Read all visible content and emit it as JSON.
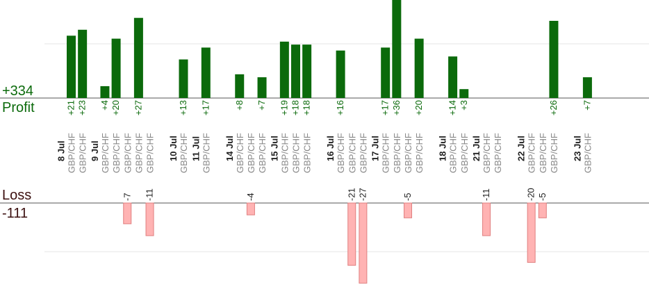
{
  "chart_data": {
    "type": "bar",
    "summary": {
      "profit_total": "+334",
      "profit_label": "Profit",
      "loss_label": "Loss",
      "loss_total": "-111"
    },
    "colors": {
      "profit": "#0b6a0b",
      "loss_fill": "#ffb3b3",
      "loss_stroke": "#e07f7f",
      "pair_text": "#888888",
      "date_text": "#222222",
      "grid": "#e6e6e6",
      "baseline": "#555555"
    },
    "date_labels": [
      "8 Jul",
      "9 Jul",
      "10 Jul",
      "11 Jul",
      "14 Jul",
      "15 Jul",
      "16 Jul",
      "17 Jul",
      "18 Jul",
      "21 Jul",
      "22 Jul",
      "23 Jul"
    ],
    "groups": [
      {
        "date": "8 Jul",
        "trades": [
          {
            "pair": "GBP/CHF",
            "value": 21,
            "label": "+21"
          },
          {
            "pair": "GBP/CHF",
            "value": 23,
            "label": "+23"
          }
        ]
      },
      {
        "date": "9 Jul",
        "trades": [
          {
            "pair": "GBP/CHF",
            "value": 4,
            "label": "+4"
          },
          {
            "pair": "GBP/CHF",
            "value": 20,
            "label": "+20"
          },
          {
            "pair": "GBP/CHF",
            "value": -7,
            "label": "-7"
          },
          {
            "pair": "GBP/CHF",
            "value": 27,
            "label": "+27"
          },
          {
            "pair": "GBP/CHF",
            "value": -11,
            "label": "-11"
          }
        ]
      },
      {
        "date": "10 Jul",
        "trades": [
          {
            "pair": "GBP/CHF",
            "value": 13,
            "label": "+13"
          }
        ]
      },
      {
        "date": "11 Jul",
        "trades": [
          {
            "pair": "GBP/CHF",
            "value": 17,
            "label": "+17"
          }
        ]
      },
      {
        "date": "14 Jul",
        "trades": [
          {
            "pair": "GBP/CHF",
            "value": 8,
            "label": "+8"
          },
          {
            "pair": "GBP/CHF",
            "value": -4,
            "label": "-4"
          },
          {
            "pair": "GBP/CHF",
            "value": 7,
            "label": "+7"
          }
        ]
      },
      {
        "date": "15 Jul",
        "trades": [
          {
            "pair": "GBP/CHF",
            "value": 19,
            "label": "+19"
          },
          {
            "pair": "GBP/CHF",
            "value": 18,
            "label": "+18"
          },
          {
            "pair": "GBP/CHF",
            "value": 18,
            "label": "+18"
          }
        ]
      },
      {
        "date": "16 Jul",
        "trades": [
          {
            "pair": "GBP/CHF",
            "value": 16,
            "label": "+16"
          },
          {
            "pair": "GBP/CHF",
            "value": -21,
            "label": "-21"
          },
          {
            "pair": "GBP/CHF",
            "value": -27,
            "label": "-27"
          }
        ]
      },
      {
        "date": "17 Jul",
        "trades": [
          {
            "pair": "GBP/CHF",
            "value": 17,
            "label": "+17"
          },
          {
            "pair": "GBP/CHF",
            "value": 36,
            "label": "+36"
          },
          {
            "pair": "GBP/CHF",
            "value": -5,
            "label": "-5"
          },
          {
            "pair": "GBP/CHF",
            "value": 20,
            "label": "+20"
          }
        ]
      },
      {
        "date": "18 Jul",
        "trades": [
          {
            "pair": "GBP/CHF",
            "value": 14,
            "label": "+14"
          },
          {
            "pair": "GBP/CHF",
            "value": 3,
            "label": "+3"
          }
        ]
      },
      {
        "date": "21 Jul",
        "trades": [
          {
            "pair": "GBP/CHF",
            "value": -11,
            "label": "-11"
          },
          {
            "pair": "GBP/CHF",
            "value": null,
            "label": ""
          }
        ]
      },
      {
        "date": "22 Jul",
        "trades": [
          {
            "pair": "GBP/CHF",
            "value": -20,
            "label": "-20"
          },
          {
            "pair": "GBP/CHF",
            "value": -5,
            "label": "-5"
          },
          {
            "pair": "GBP/CHF",
            "value": 26,
            "label": "+26"
          }
        ]
      },
      {
        "date": "23 Jul",
        "trades": [
          {
            "pair": "GBP/CHF",
            "value": 7,
            "label": "+7"
          }
        ]
      }
    ]
  }
}
